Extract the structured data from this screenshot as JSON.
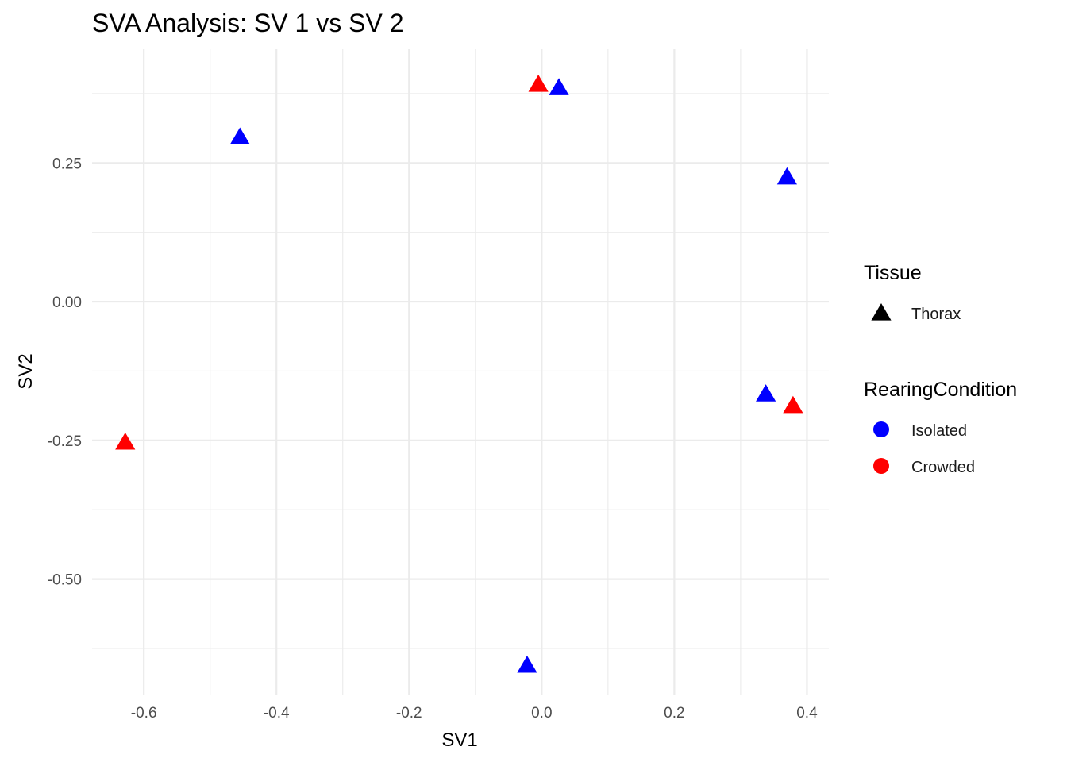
{
  "chart_data": {
    "type": "scatter",
    "title": "SVA Analysis: SV 1  vs SV 2",
    "xlabel": "SV1",
    "ylabel": "SV2",
    "xlim": [
      -0.678,
      0.433
    ],
    "ylim": [
      -0.708,
      0.455
    ],
    "x_ticks": [
      {
        "value": -0.6,
        "label": "-0.6"
      },
      {
        "value": -0.4,
        "label": "-0.4"
      },
      {
        "value": -0.2,
        "label": "-0.2"
      },
      {
        "value": 0.0,
        "label": "0.0"
      },
      {
        "value": 0.2,
        "label": "0.2"
      },
      {
        "value": 0.4,
        "label": "0.4"
      }
    ],
    "y_ticks": [
      {
        "value": 0.25,
        "label": "0.25"
      },
      {
        "value": 0.0,
        "label": "0.00"
      },
      {
        "value": -0.25,
        "label": "-0.25"
      },
      {
        "value": -0.5,
        "label": "-0.50"
      }
    ],
    "x_minor": [
      -0.5,
      -0.3,
      -0.1,
      0.1,
      0.3
    ],
    "y_minor": [
      0.375,
      0.125,
      -0.125,
      -0.375,
      -0.625
    ],
    "grid": true,
    "legend_position": "right",
    "legends": [
      {
        "title": "Tissue",
        "entries": [
          {
            "label": "Thorax",
            "shape": "triangle",
            "color": "#000000"
          }
        ]
      },
      {
        "title": "RearingCondition",
        "entries": [
          {
            "label": "Isolated",
            "shape": "circle",
            "color": "#0000ff"
          },
          {
            "label": "Crowded",
            "shape": "circle",
            "color": "#ff0000"
          }
        ]
      }
    ],
    "series": [
      {
        "name": "Isolated",
        "color": "#0000ff",
        "shape": "triangle",
        "points": [
          {
            "x": -0.455,
            "y": 0.297
          },
          {
            "x": 0.026,
            "y": 0.386
          },
          {
            "x": 0.37,
            "y": 0.225
          },
          {
            "x": 0.338,
            "y": -0.166
          },
          {
            "x": -0.022,
            "y": -0.655
          }
        ]
      },
      {
        "name": "Crowded",
        "color": "#ff0000",
        "shape": "triangle",
        "points": [
          {
            "x": -0.005,
            "y": 0.392
          },
          {
            "x": 0.379,
            "y": -0.187
          },
          {
            "x": -0.628,
            "y": -0.253
          }
        ]
      }
    ]
  }
}
